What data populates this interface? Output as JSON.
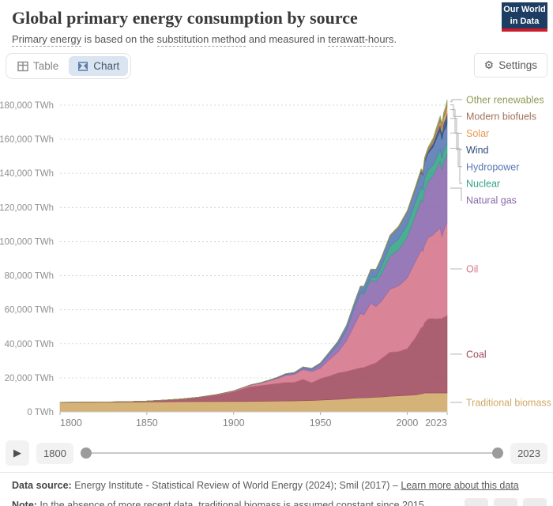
{
  "header": {
    "title": "Global primary energy consumption by source",
    "subtitle_parts": [
      {
        "text": "Primary energy",
        "underline": true
      },
      {
        "text": " is based on the ",
        "underline": false
      },
      {
        "text": "substitution method",
        "underline": true
      },
      {
        "text": " and measured in ",
        "underline": false
      },
      {
        "text": "terawatt-hours",
        "underline": true
      },
      {
        "text": ".",
        "underline": false
      }
    ],
    "logo": {
      "line1": "Our World",
      "line2": "in Data",
      "bg": "#1d3d63",
      "accent": "#cf1b2b"
    }
  },
  "toolbar": {
    "tabs": [
      {
        "label": "Table",
        "active": false
      },
      {
        "label": "Chart",
        "active": true
      }
    ],
    "settings_label": "Settings"
  },
  "chart_data": {
    "type": "area",
    "stacked": true,
    "title": "Global primary energy consumption by source",
    "unit": "TWh",
    "xlabel": "",
    "ylabel": "TWh",
    "ylim": [
      0,
      180000
    ],
    "ytick_step": 20000,
    "xticks": [
      1800,
      1850,
      1900,
      1950,
      2000,
      2023
    ],
    "grid": "horizontal-dashed",
    "legend_position": "right",
    "x": [
      1800,
      1810,
      1820,
      1830,
      1840,
      1850,
      1860,
      1870,
      1880,
      1890,
      1900,
      1905,
      1910,
      1915,
      1920,
      1925,
      1930,
      1935,
      1940,
      1945,
      1950,
      1955,
      1960,
      1965,
      1970,
      1973,
      1975,
      1979,
      1982,
      1985,
      1990,
      1995,
      2000,
      2005,
      2008,
      2009,
      2010,
      2012,
      2015,
      2017,
      2019,
      2020,
      2021,
      2022,
      2023
    ],
    "series": [
      {
        "name": "Traditional biomass",
        "color": "#cfa865",
        "values": [
          5556,
          5580,
          5610,
          5650,
          5720,
          5833,
          5900,
          5970,
          6040,
          6080,
          6111,
          6140,
          6180,
          6220,
          6270,
          6330,
          6400,
          6480,
          6580,
          6680,
          6944,
          7150,
          7400,
          7700,
          8056,
          8180,
          8260,
          8450,
          8580,
          8750,
          9167,
          9440,
          9722,
          10000,
          10560,
          10740,
          11111,
          11111,
          11111,
          11111,
          11111,
          11111,
          11111,
          11111,
          11111
        ]
      },
      {
        "name": "Coal",
        "color": "#9e4a5c",
        "values": [
          97,
          128,
          153,
          264,
          356,
          569,
          1061,
          1642,
          2542,
          3856,
          5728,
          7300,
          8656,
          9200,
          9833,
          10400,
          10936,
          10890,
          12581,
          10500,
          12603,
          13900,
          15442,
          16140,
          17056,
          17700,
          17900,
          19300,
          20300,
          22500,
          25906,
          26000,
          27427,
          34057,
          39000,
          39200,
          41415,
          43500,
          43786,
          43500,
          43800,
          43752,
          44500,
          44900,
          45565
        ]
      },
      {
        "name": "Oil",
        "color": "#d5738a",
        "values": [
          0,
          0,
          0,
          0,
          0,
          0,
          3,
          11,
          85,
          218,
          428,
          600,
          922,
          1300,
          1984,
          2800,
          4030,
          4600,
          5700,
          6500,
          6166,
          9550,
          12100,
          17900,
          26734,
          32000,
          30800,
          36000,
          33000,
          33500,
          36900,
          38500,
          41400,
          44800,
          45300,
          44200,
          45400,
          47500,
          49000,
          51500,
          52900,
          48000,
          50700,
          52900,
          54564
        ]
      },
      {
        "name": "Natural gas",
        "color": "#8a68ae",
        "values": [
          0,
          0,
          0,
          0,
          0,
          0,
          0,
          0,
          10,
          30,
          64,
          90,
          140,
          180,
          233,
          350,
          570,
          650,
          870,
          1100,
          2092,
          3000,
          4472,
          6304,
          10338,
          11900,
          12000,
          13900,
          14500,
          16100,
          19484,
          21100,
          23995,
          27200,
          29600,
          28900,
          31954,
          33000,
          34700,
          36800,
          39300,
          38862,
          40400,
          39400,
          40102
        ]
      },
      {
        "name": "Nuclear",
        "color": "#35a084",
        "values": [
          0,
          0,
          0,
          0,
          0,
          0,
          0,
          0,
          0,
          0,
          0,
          0,
          0,
          0,
          0,
          0,
          0,
          0,
          0,
          0,
          0,
          0,
          8,
          72,
          224,
          579,
          1049,
          1700,
          2600,
          4225,
          5676,
          6590,
          7323,
          7608,
          7400,
          7200,
          7374,
          6700,
          6656,
          6900,
          7073,
          6789,
          7031,
          6702,
          6824
        ]
      },
      {
        "name": "Hydropower",
        "color": "#5678b4",
        "values": [
          0,
          0,
          0,
          0,
          0,
          0,
          0,
          2,
          5,
          15,
          47,
          60,
          100,
          160,
          240,
          350,
          460,
          560,
          700,
          800,
          930,
          1400,
          1900,
          2668,
          3095,
          3350,
          3600,
          4200,
          4500,
          4900,
          5900,
          6600,
          7250,
          8000,
          8700,
          8800,
          9300,
          9900,
          10400,
          10800,
          11000,
          11300,
          11200,
          11300,
          11014
        ]
      },
      {
        "name": "Wind",
        "color": "#2c4a77",
        "values": [
          0,
          0,
          0,
          0,
          0,
          0,
          0,
          0,
          0,
          0,
          0,
          0,
          0,
          0,
          0,
          0,
          0,
          0,
          0,
          0,
          0,
          0,
          0,
          0,
          0,
          0,
          0,
          0,
          0,
          0,
          10,
          22,
          83,
          270,
          580,
          730,
          900,
          1350,
          2200,
          3000,
          3700,
          4200,
          4900,
          5500,
          6040
        ]
      },
      {
        "name": "Solar",
        "color": "#e8974e",
        "values": [
          0,
          0,
          0,
          0,
          0,
          0,
          0,
          0,
          0,
          0,
          0,
          0,
          0,
          0,
          0,
          0,
          0,
          0,
          0,
          0,
          0,
          0,
          0,
          0,
          0,
          0,
          0,
          0,
          0,
          0,
          0,
          0,
          3,
          10,
          30,
          50,
          90,
          250,
          660,
          1200,
          1800,
          2200,
          2700,
          3400,
          4264
        ]
      },
      {
        "name": "Modern biofuels",
        "color": "#a0715a",
        "values": [
          0,
          0,
          0,
          0,
          0,
          0,
          0,
          0,
          0,
          0,
          0,
          0,
          0,
          0,
          0,
          0,
          0,
          0,
          0,
          0,
          0,
          0,
          0,
          0,
          0,
          0,
          0,
          100,
          130,
          180,
          250,
          300,
          350,
          500,
          750,
          800,
          850,
          950,
          1000,
          1100,
          1200,
          1150,
          1250,
          1300,
          1317
        ]
      },
      {
        "name": "Other renewables",
        "color": "#8d9c55",
        "values": [
          0,
          0,
          0,
          0,
          0,
          0,
          0,
          0,
          0,
          0,
          0,
          0,
          0,
          0,
          0,
          0,
          0,
          0,
          0,
          0,
          0,
          0,
          60,
          80,
          100,
          120,
          130,
          160,
          200,
          250,
          400,
          500,
          600,
          700,
          800,
          820,
          900,
          1050,
          1300,
          1550,
          1800,
          1900,
          2000,
          2200,
          2433
        ]
      }
    ]
  },
  "timeline": {
    "play_label": "▶",
    "start_label": "1800",
    "end_label": "2023"
  },
  "footer": {
    "source_prefix": "Data source:",
    "source_text": " Energy Institute - Statistical Review of World Energy (2024); Smil (2017) – ",
    "link_label": "Learn more about this data",
    "note_prefix": "Note:",
    "note_text": " In the absence of more recent data, traditional biomass is assumed constant since 2015."
  }
}
